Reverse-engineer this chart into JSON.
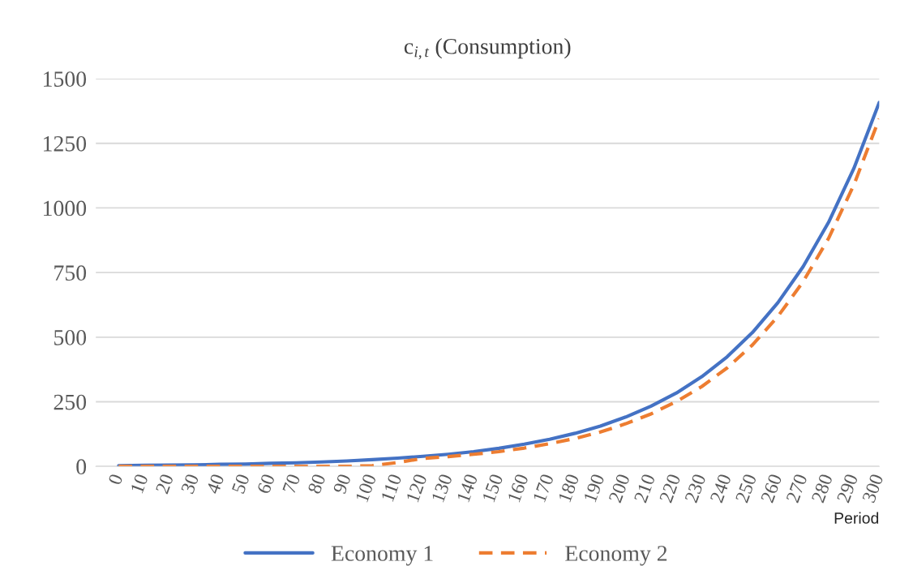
{
  "chart_data": {
    "type": "line",
    "title": "c$_{i,t}$ (Consumption)",
    "xlabel": "Period",
    "x": [
      0,
      10,
      20,
      30,
      40,
      50,
      60,
      70,
      80,
      90,
      100,
      110,
      120,
      130,
      140,
      150,
      160,
      170,
      180,
      190,
      200,
      210,
      220,
      230,
      240,
      250,
      260,
      270,
      280,
      290,
      300
    ],
    "series": [
      {
        "name": "Economy 1",
        "color": "#4472c4",
        "line_style": "solid",
        "values": [
          3,
          4,
          5,
          6,
          8,
          9,
          12,
          14,
          17,
          21,
          26,
          32,
          39,
          47,
          57,
          70,
          86,
          105,
          128,
          156,
          191,
          233,
          284,
          347,
          424,
          518,
          633,
          773,
          944,
          1153,
          1408
        ]
      },
      {
        "name": "Economy 2",
        "color": "#ed7d31",
        "line_style": "dashed",
        "values": [
          0,
          0,
          0,
          0,
          0,
          0,
          0,
          0,
          0,
          0,
          3,
          15,
          31,
          38,
          47,
          57,
          71,
          88,
          108,
          133,
          165,
          203,
          251,
          309,
          381,
          470,
          580,
          715,
          882,
          1089,
          1345
        ]
      }
    ],
    "xlim": [
      -9,
      300
    ],
    "xticks": [
      0,
      10,
      20,
      30,
      40,
      50,
      60,
      70,
      80,
      90,
      100,
      110,
      120,
      130,
      140,
      150,
      160,
      170,
      180,
      190,
      200,
      210,
      220,
      230,
      240,
      250,
      260,
      270,
      280,
      290,
      300
    ],
    "ylim": [
      0,
      1500
    ],
    "yticks": [
      0,
      250,
      500,
      750,
      1000,
      1250,
      1500
    ],
    "grid": "y",
    "legend": "bottom",
    "marker": "none"
  }
}
